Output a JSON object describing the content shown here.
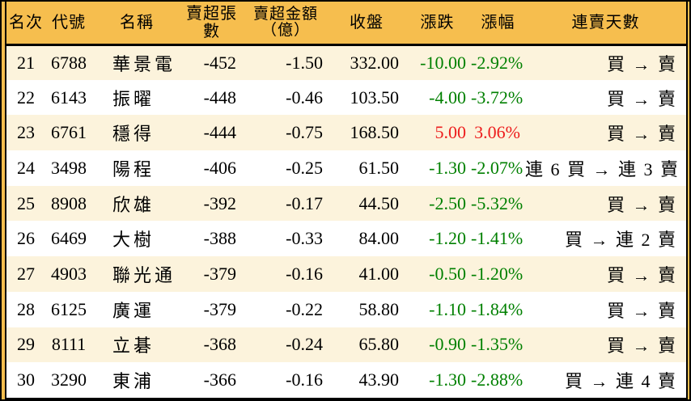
{
  "colors": {
    "header_bg": "#F6BE4E",
    "row_odd_bg": "#FCF3DC",
    "row_even_bg": "#FFFFFF",
    "down_green": "#008000",
    "up_red": "#ED1C1C",
    "border": "#000000"
  },
  "chart_data": {
    "type": "table",
    "headers": {
      "rank": "名次",
      "code": "代號",
      "name": "名稱",
      "volume": "賣超張數",
      "amount_line1": "賣超金額",
      "amount_line2": "（億）",
      "close": "收盤",
      "change": "漲跌",
      "pct": "漲幅",
      "streak": "連賣天數"
    },
    "rows": [
      {
        "rank": "21",
        "code": "6788",
        "name": "華景電",
        "volume": "-452",
        "amount": "-1.50",
        "close": "332.00",
        "change": "-10.00",
        "pct": "-2.92%",
        "streak": "買 → 賣",
        "direction": "down"
      },
      {
        "rank": "22",
        "code": "6143",
        "name": "振曜",
        "volume": "-448",
        "amount": "-0.46",
        "close": "103.50",
        "change": "-4.00",
        "pct": "-3.72%",
        "streak": "買 → 賣",
        "direction": "down"
      },
      {
        "rank": "23",
        "code": "6761",
        "name": "穩得",
        "volume": "-444",
        "amount": "-0.75",
        "close": "168.50",
        "change": "5.00",
        "pct": "3.06%",
        "streak": "買 → 賣",
        "direction": "up"
      },
      {
        "rank": "24",
        "code": "3498",
        "name": "陽程",
        "volume": "-406",
        "amount": "-0.25",
        "close": "61.50",
        "change": "-1.30",
        "pct": "-2.07%",
        "streak": "連 6 買 → 連 3 賣",
        "direction": "down"
      },
      {
        "rank": "25",
        "code": "8908",
        "name": "欣雄",
        "volume": "-392",
        "amount": "-0.17",
        "close": "44.50",
        "change": "-2.50",
        "pct": "-5.32%",
        "streak": "買 → 賣",
        "direction": "down"
      },
      {
        "rank": "26",
        "code": "6469",
        "name": "大樹",
        "volume": "-388",
        "amount": "-0.33",
        "close": "84.00",
        "change": "-1.20",
        "pct": "-1.41%",
        "streak": "買 → 連 2 賣",
        "direction": "down"
      },
      {
        "rank": "27",
        "code": "4903",
        "name": "聯光通",
        "volume": "-379",
        "amount": "-0.16",
        "close": "41.00",
        "change": "-0.50",
        "pct": "-1.20%",
        "streak": "買 → 賣",
        "direction": "down"
      },
      {
        "rank": "28",
        "code": "6125",
        "name": "廣運",
        "volume": "-379",
        "amount": "-0.22",
        "close": "58.80",
        "change": "-1.10",
        "pct": "-1.84%",
        "streak": "買 → 賣",
        "direction": "down"
      },
      {
        "rank": "29",
        "code": "8111",
        "name": "立碁",
        "volume": "-368",
        "amount": "-0.24",
        "close": "65.80",
        "change": "-0.90",
        "pct": "-1.35%",
        "streak": "買 → 賣",
        "direction": "down"
      },
      {
        "rank": "30",
        "code": "3290",
        "name": "東浦",
        "volume": "-366",
        "amount": "-0.16",
        "close": "43.90",
        "change": "-1.30",
        "pct": "-2.88%",
        "streak": "買 → 連 4 賣",
        "direction": "down"
      }
    ]
  }
}
